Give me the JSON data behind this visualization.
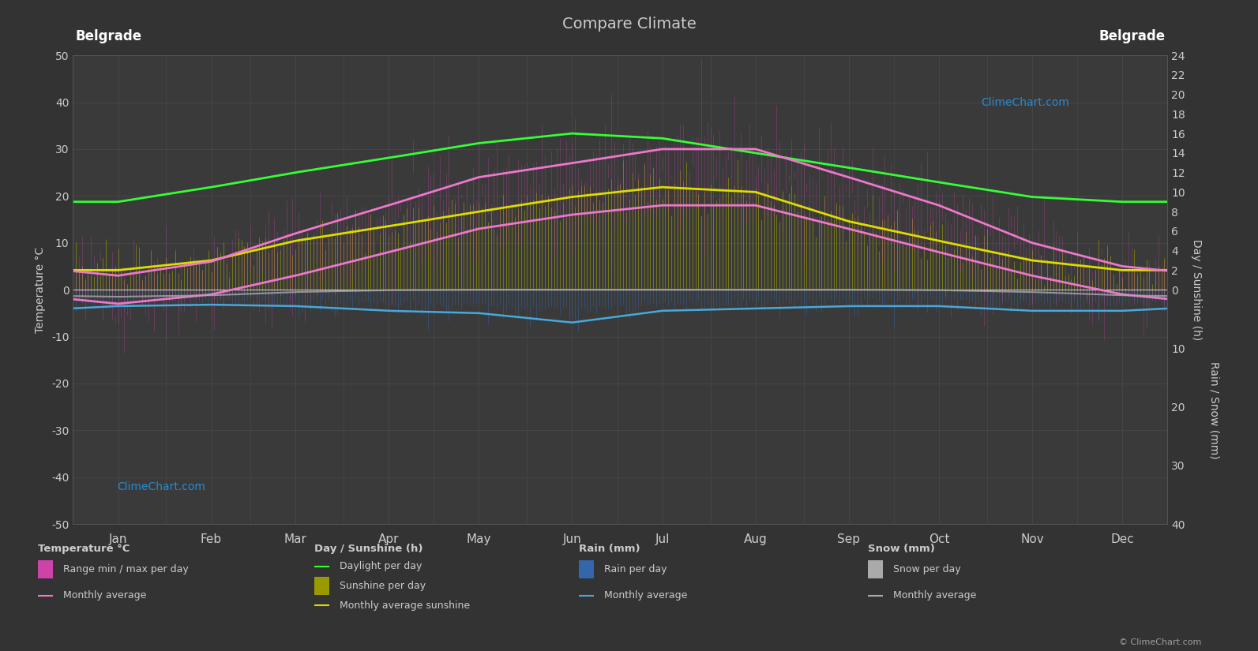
{
  "title": "Compare Climate",
  "location": "Belgrade",
  "bg_color": "#333333",
  "plot_bg_color": "#3a3a3a",
  "grid_color": "#555555",
  "text_color": "#cccccc",
  "months": [
    "Jan",
    "Feb",
    "Mar",
    "Apr",
    "May",
    "Jun",
    "Jul",
    "Aug",
    "Sep",
    "Oct",
    "Nov",
    "Dec"
  ],
  "month_centers": [
    15,
    46,
    74,
    105,
    135,
    166,
    196,
    227,
    258,
    288,
    319,
    349
  ],
  "month_boundaries": [
    0,
    31,
    59,
    90,
    120,
    151,
    181,
    212,
    243,
    273,
    304,
    334,
    365
  ],
  "days_in_year": 365,
  "temp_avg_max_monthly": [
    3,
    6,
    12,
    18,
    24,
    27,
    30,
    30,
    24,
    18,
    10,
    5
  ],
  "temp_avg_min_monthly": [
    -3,
    -1,
    3,
    8,
    13,
    16,
    18,
    18,
    13,
    8,
    3,
    -1
  ],
  "daylight_monthly": [
    9.0,
    10.5,
    12.0,
    13.5,
    15.0,
    16.0,
    15.5,
    14.0,
    12.5,
    11.0,
    9.5,
    9.0
  ],
  "sunshine_monthly": [
    2.0,
    3.0,
    5.0,
    6.5,
    8.0,
    9.5,
    10.5,
    10.0,
    7.0,
    5.0,
    3.0,
    2.0
  ],
  "rain_daily_avg_monthly": [
    1.5,
    1.4,
    1.5,
    1.9,
    2.2,
    3.0,
    1.9,
    1.7,
    1.5,
    1.5,
    1.9,
    1.9
  ],
  "snow_daily_avg_monthly": [
    0.9,
    0.7,
    0.3,
    0.04,
    0,
    0,
    0,
    0,
    0,
    0.04,
    0.3,
    0.7
  ],
  "rain_monthly_avg_line": [
    -3.5,
    -3.2,
    -3.5,
    -4.5,
    -5.0,
    -7.0,
    -4.5,
    -4.0,
    -3.5,
    -3.5,
    -4.5,
    -4.5
  ],
  "snow_monthly_avg_line": [
    -1.5,
    -1.2,
    -0.5,
    -0.1,
    0,
    0,
    0,
    0,
    0,
    -0.1,
    -0.5,
    -1.2
  ],
  "green_line_color": "#33ff33",
  "yellow_line_color": "#dddd00",
  "pink_line_color": "#ee77cc",
  "blue_line_color": "#44aadd",
  "rain_bar_color": "#3366aa",
  "snow_bar_color": "#888899",
  "sunshine_bar_color": "#999900",
  "temp_bar_color": "#cc44aa"
}
